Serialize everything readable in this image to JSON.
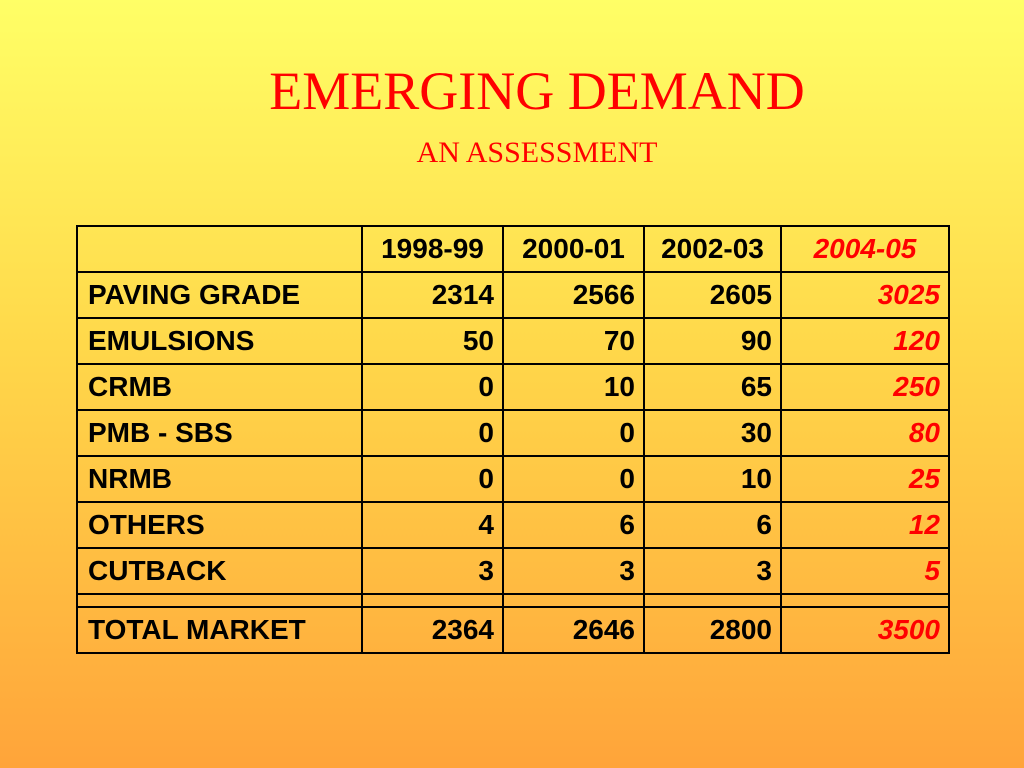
{
  "title": "EMERGING DEMAND",
  "subtitle": "AN ASSESSMENT",
  "colors": {
    "title": "#ff0000",
    "highlight_column": "#ff0000",
    "text": "#000000",
    "background_top": "#ffff66",
    "background_bottom": "#ffa43a"
  },
  "table": {
    "corner_header": "",
    "columns": [
      "1998-99",
      "2000-01",
      "2002-03",
      "2004-05"
    ],
    "rows": [
      {
        "label": "PAVING GRADE",
        "values": [
          "2314",
          "2566",
          "2605",
          "3025"
        ]
      },
      {
        "label": "EMULSIONS",
        "values": [
          "50",
          "70",
          "90",
          "120"
        ]
      },
      {
        "label": "CRMB",
        "values": [
          "0",
          "10",
          "65",
          "250"
        ]
      },
      {
        "label": "PMB - SBS",
        "values": [
          "0",
          "0",
          "30",
          "80"
        ]
      },
      {
        "label": "NRMB",
        "values": [
          "0",
          "0",
          "10",
          "25"
        ]
      },
      {
        "label": "OTHERS",
        "values": [
          "4",
          "6",
          "6",
          "12"
        ]
      },
      {
        "label": "CUTBACK",
        "values": [
          "3",
          "3",
          "3",
          "5"
        ]
      }
    ],
    "total": {
      "label": "TOTAL MARKET",
      "values": [
        "2364",
        "2646",
        "2800",
        "3500"
      ]
    }
  }
}
